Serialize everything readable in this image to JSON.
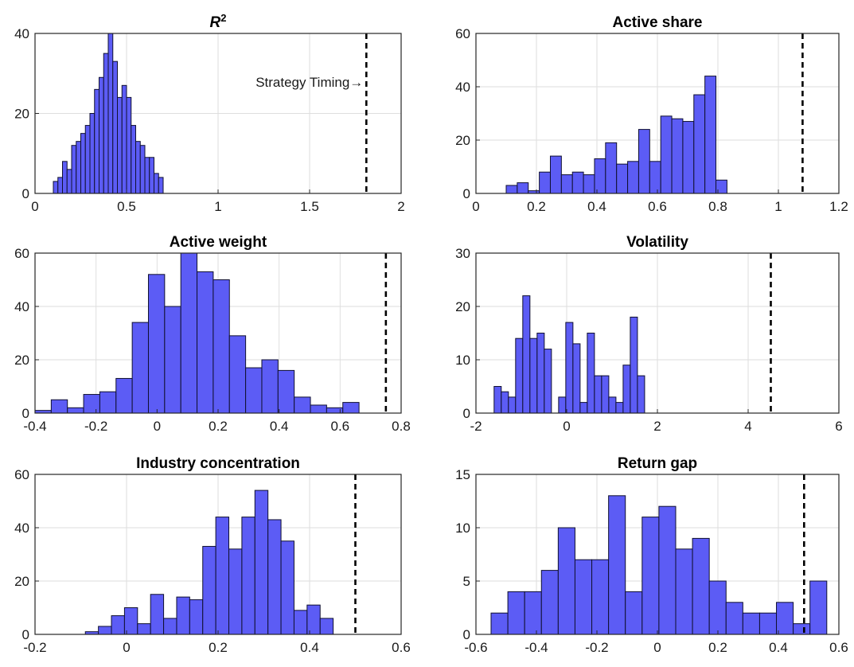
{
  "chart_data": [
    {
      "type": "histogram",
      "title": "R",
      "title_superscript": "2",
      "xlim": [
        0,
        2
      ],
      "ylim": [
        0,
        40
      ],
      "xticks": [
        "0",
        "0.5",
        "1",
        "1.5",
        "2"
      ],
      "yticks": [
        "0",
        "20",
        "40"
      ],
      "bin_start": 0.1,
      "bin_width": 0.025,
      "counts": [
        3,
        4,
        8,
        6,
        12,
        13,
        15,
        17,
        20,
        26,
        29,
        35,
        40,
        33,
        24,
        27,
        24,
        17,
        13,
        12,
        9,
        9,
        5,
        4
      ],
      "reference_line": 1.81,
      "annotation": "Strategy Timing→"
    },
    {
      "type": "histogram",
      "title": "Active share",
      "xlim": [
        0,
        1.2
      ],
      "ylim": [
        0,
        60
      ],
      "xticks": [
        "0",
        "0.2",
        "0.4",
        "0.6",
        "0.8",
        "1",
        "1.2"
      ],
      "yticks": [
        "0",
        "20",
        "40",
        "60"
      ],
      "bin_start": 0.1,
      "bin_width": 0.0365,
      "counts": [
        3,
        4,
        1,
        8,
        14,
        7,
        8,
        7,
        13,
        19,
        11,
        12,
        24,
        12,
        29,
        28,
        27,
        37,
        44,
        5
      ],
      "reference_line": 1.08
    },
    {
      "type": "histogram",
      "title": "Active weight",
      "xlim": [
        -0.4,
        0.8
      ],
      "ylim": [
        0,
        60
      ],
      "xticks": [
        "-0.4",
        "-0.2",
        "0",
        "0.2",
        "0.4",
        "0.6",
        "0.8"
      ],
      "yticks": [
        "0",
        "20",
        "40",
        "60"
      ],
      "bin_start": -0.4,
      "bin_width": 0.0531,
      "counts": [
        1,
        5,
        2,
        7,
        8,
        13,
        34,
        52,
        40,
        60,
        53,
        50,
        29,
        17,
        20,
        16,
        6,
        3,
        2,
        4
      ],
      "reference_line": 0.75
    },
    {
      "type": "histogram",
      "title": "Volatility",
      "xlim": [
        -2,
        6
      ],
      "ylim": [
        0,
        30
      ],
      "xticks": [
        "-2",
        "0",
        "2",
        "4",
        "6"
      ],
      "yticks": [
        "0",
        "10",
        "20",
        "30"
      ],
      "bin_start": -1.6,
      "bin_width": 0.158,
      "counts": [
        5,
        4,
        3,
        14,
        22,
        14,
        15,
        12,
        0,
        3,
        17,
        13,
        2,
        15,
        7,
        7,
        3,
        2,
        9,
        18,
        7
      ],
      "reference_line": 4.5
    },
    {
      "type": "histogram",
      "title": "Industry concentration",
      "xlim": [
        -0.2,
        0.6
      ],
      "ylim": [
        0,
        60
      ],
      "xticks": [
        "-0.2",
        "0",
        "0.2",
        "0.4",
        "0.6"
      ],
      "yticks": [
        "0",
        "20",
        "40",
        "60"
      ],
      "bin_start": -0.09,
      "bin_width": 0.0285,
      "counts": [
        1,
        3,
        7,
        10,
        4,
        15,
        6,
        14,
        13,
        33,
        44,
        32,
        44,
        54,
        43,
        35,
        9,
        11,
        6
      ],
      "reference_line": 0.5
    },
    {
      "type": "histogram",
      "title": "Return gap",
      "xlim": [
        -0.6,
        0.6
      ],
      "ylim": [
        0,
        15
      ],
      "xticks": [
        "-0.6",
        "-0.4",
        "-0.2",
        "0",
        "0.2",
        "0.4",
        "0.6"
      ],
      "yticks": [
        "0",
        "5",
        "10",
        "15"
      ],
      "bin_start": -0.55,
      "bin_width": 0.0555,
      "counts": [
        2,
        4,
        4,
        6,
        10,
        7,
        7,
        13,
        4,
        11,
        12,
        8,
        9,
        5,
        3,
        2,
        2,
        3,
        1,
        5
      ],
      "reference_line": 0.485
    }
  ]
}
